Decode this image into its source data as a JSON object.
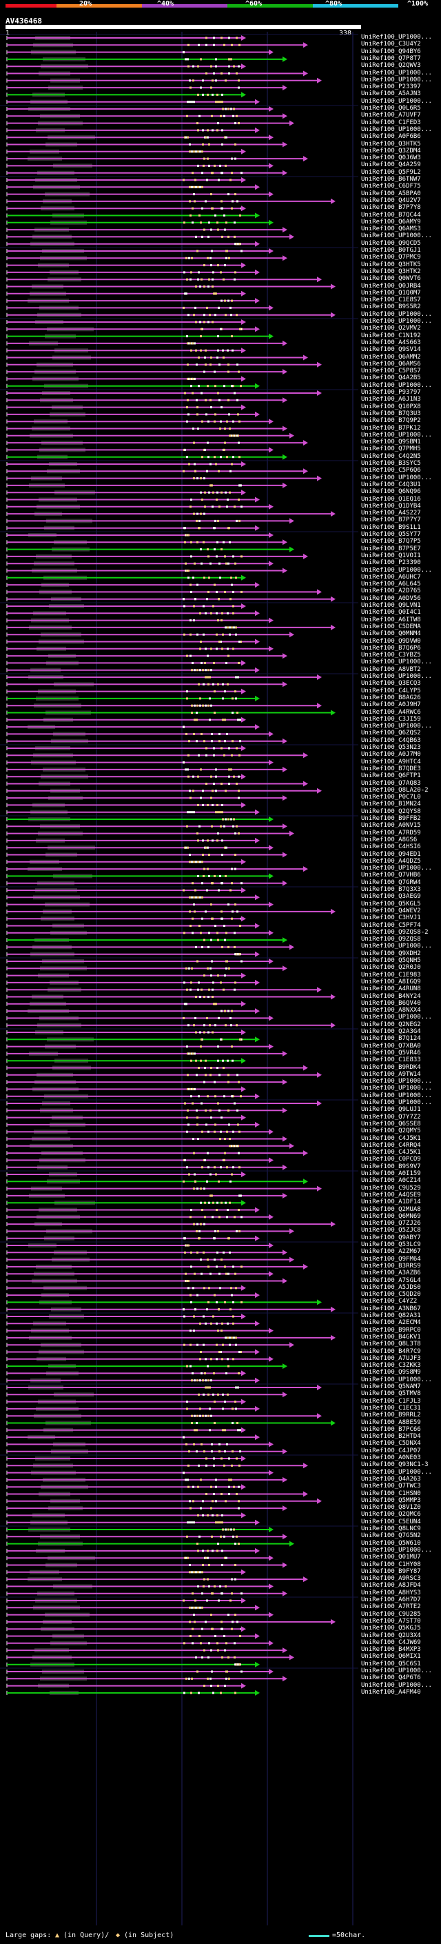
{
  "scale": {
    "labels": [
      "20%",
      "^40%",
      "^60%",
      "^80%",
      "^100%"
    ],
    "colors": [
      "#e8101e",
      "#f08020",
      "#a040c0",
      "#10b010",
      "#20c0e0"
    ]
  },
  "query": {
    "name": "AV436468",
    "start": "1",
    "end": "338"
  },
  "hits": [
    "UniRef100_UP1000...",
    "UniRef100_C3U4Y2",
    "UniRef100_Q94BY6",
    "UniRef100_Q7P8T7",
    "UniRef100_Q2QWV3",
    "UniRef100_UP1000...",
    "UniRef100_UP1000...",
    "UniRef100_P23397",
    "UniRef100_A5AJN3",
    "UniRef100_UP1000...",
    "UniRef100_Q0L6R5",
    "UniRef100_A7UVF7",
    "UniRef100_C1FED3",
    "UniRef100_UP1000...",
    "UniRef100_A0F6B6",
    "UniRef100_Q3HTK5",
    "UniRef100_Q3ZDM4",
    "UniRef100_Q0J6W3",
    "UniRef100_Q4A259",
    "UniRef100_Q5F9L2",
    "UniRef100_B6TNW7",
    "UniRef100_C6DF75",
    "UniRef100_A5BPA0",
    "UniRef100_Q4U2V7",
    "UniRef100_B7P7Y8",
    "UniRef100_B7QC44",
    "UniRef100_Q6AMY9",
    "UniRef100_Q6AMS3",
    "UniRef100_UP1000...",
    "UniRef100_Q9QCD5",
    "UniRef100_B0TGJ1",
    "UniRef100_Q7PMC9",
    "UniRef100_Q3HTK5",
    "UniRef100_Q3HTK2",
    "UniRef100_Q0WVT6",
    "UniRef100_Q0JRB4",
    "UniRef100_Q1Q0M7",
    "UniRef100_C1E8S7",
    "UniRef100_B9S5R2",
    "UniRef100_UP1000...",
    "UniRef100_UP1000...",
    "UniRef100_Q2VMV2",
    "UniRef100_C1N192",
    "UniRef100_A4S663",
    "UniRef100_Q9SV14",
    "UniRef100_Q6AMM2",
    "UniRef100_Q6AMS6",
    "UniRef100_C5P8S7",
    "UniRef100_Q4A2B5",
    "UniRef100_UP1000...",
    "UniRef100_P93797",
    "UniRef100_A6J1N3",
    "UniRef100_Q10PX8",
    "UniRef100_B7Q3U3",
    "UniRef100_B7Q9P2",
    "UniRef100_B7PK12",
    "UniRef100_UP1000...",
    "UniRef100_Q9SBM1",
    "UniRef100_Q7PMH5",
    "UniRef100_C4Q2N5",
    "UniRef100_B3SYC5",
    "UniRef100_C5P6Q6",
    "UniRef100_UP1000...",
    "UniRef100_C4Q3U1",
    "UniRef100_Q6NQ96",
    "UniRef100_Q1EQ16",
    "UniRef100_Q1DYB4",
    "UniRef100_A4S227",
    "UniRef100_B7P7Y7",
    "UniRef100_B9S1L1",
    "UniRef100_Q5SY77",
    "UniRef100_B7Q7P5",
    "UniRef100_B7P5E7",
    "UniRef100_Q1VOI1",
    "UniRef100_P23390",
    "UniRef100_UP1000...",
    "UniRef100_A6UHC7",
    "UniRef100_A6L645",
    "UniRef100_A2D765",
    "UniRef100_A0DV56",
    "UniRef100_Q9LVN1",
    "UniRef100_Q0I4C1",
    "UniRef100_A6ITW8",
    "UniRef100_C5DEMA",
    "UniRef100_Q0MNM4",
    "UniRef100_Q9DVW0",
    "UniRef100_B7Q6P6",
    "UniRef100_C3YBZ5",
    "UniRef100_UP1000...",
    "UniRef100_A8VBT2",
    "UniRef100_UP1000...",
    "UniRef100_Q3ECQ3",
    "UniRef100_C4LYP5",
    "UniRef100_B8AG26",
    "UniRef100_A0J9H7",
    "UniRef100_A4RWC6",
    "UniRef100_C3JI59",
    "UniRef100_UP1000...",
    "UniRef100_Q6ZQS2",
    "UniRef100_C4QB63",
    "UniRef100_Q53N23",
    "UniRef100_A0J7M0",
    "UniRef100_A9HTC4",
    "UniRef100_B7QDE3",
    "UniRef100_Q6FTP1",
    "UniRef100_Q7AQ83",
    "UniRef100_Q8LA20-2",
    "UniRef100_P0C7L0",
    "UniRef100_B1MN24",
    "UniRef100_Q2QYS8",
    "UniRef100_B9FFB2",
    "UniRef100_A0NV15",
    "UniRef100_A7RD59",
    "UniRef100_A8GS6",
    "UniRef100_C4HSI6",
    "UniRef100_Q94ED1",
    "UniRef100_A4QDZ5",
    "UniRef100_UP1000...",
    "UniRef100_Q7VHB6",
    "UniRef100_Q7GRW4",
    "UniRef100_B7Q3X3",
    "UniRef100_Q3AEG9",
    "UniRef100_Q5KGL5",
    "UniRef100_Q4WEV2",
    "UniRef100_C3HVJ1",
    "UniRef100_C5PF74",
    "UniRef100_Q9ZQS8-2",
    "UniRef100_Q9ZQS8",
    "UniRef100_UP1000...",
    "UniRef100_Q9XDH2",
    "UniRef100_Q5QNH5",
    "UniRef100_Q2R0J0",
    "UniRef100_C1E983",
    "UniRef100_A8IGQ9",
    "UniRef100_A4RUN8",
    "UniRef100_B4NY24",
    "UniRef100_B6QV40",
    "UniRef100_A8NXX4",
    "UniRef100_UP1000...",
    "UniRef100_Q2NEG2",
    "UniRef100_Q2A3G4",
    "UniRef100_B7Q124",
    "UniRef100_Q7XBA0",
    "UniRef100_Q5VR46",
    "UniRef100_C1E833",
    "UniRef100_B9RDK4",
    "UniRef100_A9TW14",
    "UniRef100_UP1000...",
    "UniRef100_UP1000...",
    "UniRef100_UP1000...",
    "UniRef100_UP1000...",
    "UniRef100_Q9LUJ1",
    "UniRef100_Q7Y7Z2",
    "UniRef100_Q6SSE8",
    "UniRef100_Q2QMY5",
    "UniRef100_C4J5K1",
    "UniRef100_C4RRQ4",
    "UniRef100_C4J5K1",
    "UniRef100_C0PCO9",
    "UniRef100_B9S9V7",
    "UniRef100_A0I159",
    "UniRef100_A0CZ14",
    "UniRef100_C9U529",
    "UniRef100_A4QSE9",
    "UniRef100_A1DF14",
    "UniRef100_Q2MUA8",
    "UniRef100_Q6MN69",
    "UniRef100_Q7ZJ26",
    "UniRef100_Q5ZJC8",
    "UniRef100_Q9ABY7",
    "UniRef100_Q53LC9",
    "UniRef100_A2ZM67",
    "UniRef100_Q9FM64",
    "UniRef100_B3RRS9",
    "UniRef100_A3AZB6",
    "UniRef100_A7SGL4",
    "UniRef100_A5JDS0",
    "UniRef100_C5QD20",
    "UniRef100_C4YZ2",
    "UniRef100_A3NB67",
    "UniRef100_Q82A31",
    "UniRef100_A2ECM4",
    "UniRef100_B9RPC0",
    "UniRef100_B4GKV1",
    "UniRef100_Q8L3T8",
    "UniRef100_B4R7C9",
    "UniRef100_A7UJF3",
    "UniRef100_C3ZKK3",
    "UniRef100_Q9S8M9",
    "UniRef100_UP1000...",
    "UniRef100_Q5NAM7",
    "UniRef100_Q5TMV8",
    "UniRef100_C1FJL3",
    "UniRef100_C1EC31",
    "UniRef100_B9RRL2",
    "UniRef100_A8BE59",
    "UniRef100_B7PC66",
    "UniRef100_B2HTD4",
    "UniRef100_C5DNX4",
    "UniRef100_C4JP07",
    "UniRef100_A0NE03",
    "UniRef100_Q93NC1-3",
    "UniRef100_UP1000...",
    "UniRef100_Q4A263",
    "UniRef100_Q7TWC3",
    "UniRef100_C1HSN0",
    "UniRef100_Q5MMP3",
    "UniRef100_Q8V1Z0",
    "UniRef100_Q2QMC6",
    "UniRef100_C5EUN4",
    "UniRef100_Q8LNC9",
    "UniRef100_Q7G5N2",
    "UniRef100_Q5W610",
    "UniRef100_UP1000...",
    "UniRef100_Q01MU7",
    "UniRef100_C1HY08",
    "UniRef100_B9FY87",
    "UniRef100_A9RSC3",
    "UniRef100_A8JFD4",
    "UniRef100_A8HYS3",
    "UniRef100_A6H7D7",
    "UniRef100_A7RTE2",
    "UniRef100_C9U285",
    "UniRef100_A7ST70",
    "UniRef100_Q5KGJ5",
    "UniRef100_Q2U3X4",
    "UniRef100_C4JW69",
    "UniRef100_B4MXP3",
    "UniRef100_Q6MIX1",
    "UniRef100_Q5C6S1",
    "UniRef100_UP1000...",
    "UniRef100_Q4P6T6",
    "UniRef100_UP1000...",
    "UniRef100_A4FM40"
  ],
  "legend": {
    "large_gaps_label": "Large gaps:",
    "in_query_label": "(in Query)/",
    "in_subject_label": "(in Subject)",
    "scale_label": "=50char."
  }
}
